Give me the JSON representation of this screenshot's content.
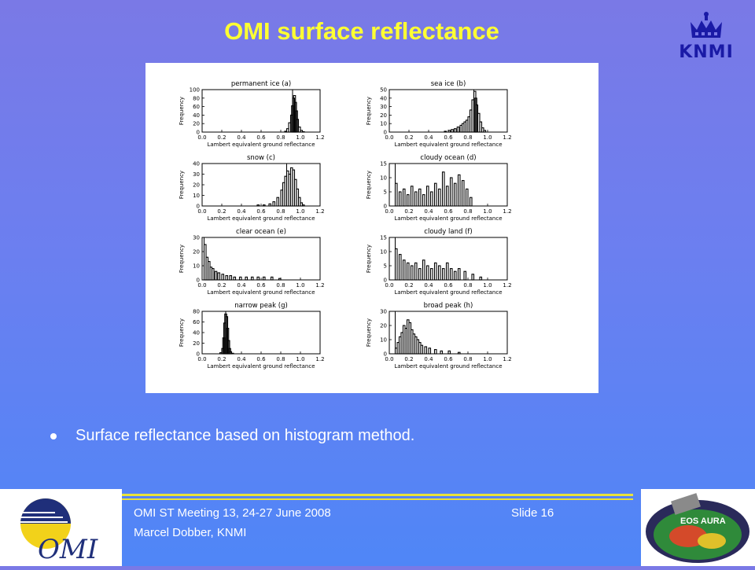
{
  "slide": {
    "title": "OMI surface reflectance",
    "bullet": "Surface reflectance based on histogram method.",
    "logo_text": "KNMI",
    "footer_meeting": "OMI ST Meeting 13, 24-27 June 2008",
    "footer_slide": "Slide 16",
    "footer_author": "Marcel Dobber, KNMI",
    "omi_logo_text": "OMI",
    "aura_logo_text": "EOS AURA",
    "icons": [
      "knmi-crown-icon",
      "omi-logo-icon",
      "eos-aura-logo-icon"
    ],
    "colors": {
      "title": "#ffff33",
      "background_top": "#7a79e6",
      "background_bottom": "#4f86f7",
      "footer_rule": "#e8e23a"
    }
  },
  "chart_data": [
    {
      "type": "histogram",
      "title": "permanent ice (a)",
      "xlabel": "Lambert equivalent ground reflectance",
      "ylabel": "Frequency",
      "xlim": [
        0.0,
        1.2
      ],
      "ylim": [
        0,
        100
      ],
      "xticks": [
        "0.0",
        "0.2",
        "0.4",
        "0.6",
        "0.8",
        "1.0",
        "1.2"
      ],
      "yticks": [
        "0",
        "20",
        "40",
        "60",
        "80",
        "100"
      ],
      "ytick_values": [
        0,
        20,
        40,
        60,
        80,
        100
      ],
      "marker_x": 0.92,
      "bins": [
        [
          0.84,
          2
        ],
        [
          0.86,
          8
        ],
        [
          0.88,
          22
        ],
        [
          0.9,
          40
        ],
        [
          0.91,
          62
        ],
        [
          0.92,
          80
        ],
        [
          0.93,
          86
        ],
        [
          0.94,
          70
        ],
        [
          0.95,
          50
        ],
        [
          0.96,
          30
        ],
        [
          0.98,
          12
        ],
        [
          1.0,
          4
        ],
        [
          1.02,
          1
        ]
      ]
    },
    {
      "type": "histogram",
      "title": "sea ice (b)",
      "xlabel": "Lambert equivalent ground reflectance",
      "ylabel": "Frequency",
      "xlim": [
        0.0,
        1.2
      ],
      "ylim": [
        0,
        50
      ],
      "xticks": [
        "0.0",
        "0.2",
        "0.4",
        "0.6",
        "0.8",
        "1.0",
        "1.2"
      ],
      "yticks": [
        "0",
        "10",
        "20",
        "30",
        "40",
        "50"
      ],
      "ytick_values": [
        0,
        10,
        20,
        30,
        40,
        50
      ],
      "marker_x": 0.86,
      "bins": [
        [
          0.56,
          1
        ],
        [
          0.6,
          2
        ],
        [
          0.63,
          3
        ],
        [
          0.66,
          4
        ],
        [
          0.69,
          6
        ],
        [
          0.72,
          8
        ],
        [
          0.74,
          10
        ],
        [
          0.76,
          12
        ],
        [
          0.78,
          14
        ],
        [
          0.8,
          18
        ],
        [
          0.82,
          26
        ],
        [
          0.84,
          38
        ],
        [
          0.86,
          48
        ],
        [
          0.87,
          40
        ],
        [
          0.88,
          32
        ],
        [
          0.9,
          22
        ],
        [
          0.92,
          12
        ],
        [
          0.94,
          5
        ],
        [
          0.96,
          2
        ]
      ]
    },
    {
      "type": "histogram",
      "title": "snow (c)",
      "xlabel": "Lambert equivalent ground reflectance",
      "ylabel": "Frequency",
      "xlim": [
        0.0,
        1.2
      ],
      "ylim": [
        0,
        40
      ],
      "xticks": [
        "0.0",
        "0.2",
        "0.4",
        "0.6",
        "0.8",
        "1.0",
        "1.2"
      ],
      "yticks": [
        "0",
        "10",
        "20",
        "30",
        "40"
      ],
      "ytick_values": [
        0,
        10,
        20,
        30,
        40
      ],
      "marker_x": 0.86,
      "bins": [
        [
          0.56,
          1
        ],
        [
          0.62,
          1
        ],
        [
          0.68,
          2
        ],
        [
          0.72,
          4
        ],
        [
          0.76,
          8
        ],
        [
          0.8,
          15
        ],
        [
          0.82,
          22
        ],
        [
          0.84,
          28
        ],
        [
          0.86,
          33
        ],
        [
          0.88,
          30
        ],
        [
          0.9,
          36
        ],
        [
          0.92,
          34
        ],
        [
          0.94,
          25
        ],
        [
          0.96,
          16
        ],
        [
          0.98,
          8
        ],
        [
          1.0,
          3
        ],
        [
          1.02,
          1
        ]
      ]
    },
    {
      "type": "histogram",
      "title": "cloudy ocean (d)",
      "xlabel": "Lambert equivalent ground reflectance",
      "ylabel": "Frequency",
      "xlim": [
        0.0,
        1.2
      ],
      "ylim": [
        0,
        15
      ],
      "xticks": [
        "0.0",
        "0.2",
        "0.4",
        "0.6",
        "0.8",
        "1.0",
        "1.2"
      ],
      "yticks": [
        "0",
        "5",
        "10",
        "15"
      ],
      "ytick_values": [
        0,
        5,
        10,
        15
      ],
      "marker_x": 0.06,
      "bins": [
        [
          0.06,
          8
        ],
        [
          0.1,
          5
        ],
        [
          0.14,
          6
        ],
        [
          0.18,
          4
        ],
        [
          0.22,
          7
        ],
        [
          0.26,
          5
        ],
        [
          0.3,
          6
        ],
        [
          0.34,
          4
        ],
        [
          0.38,
          7
        ],
        [
          0.42,
          5
        ],
        [
          0.46,
          8
        ],
        [
          0.5,
          6
        ],
        [
          0.54,
          12
        ],
        [
          0.58,
          7
        ],
        [
          0.62,
          10
        ],
        [
          0.66,
          8
        ],
        [
          0.7,
          11
        ],
        [
          0.74,
          9
        ],
        [
          0.78,
          6
        ],
        [
          0.82,
          3
        ]
      ]
    },
    {
      "type": "histogram",
      "title": "clear ocean (e)",
      "xlabel": "Lambert equivalent ground reflectance",
      "ylabel": "Frequency",
      "xlim": [
        0.0,
        1.2
      ],
      "ylim": [
        0,
        30
      ],
      "xticks": [
        "0.0",
        "0.2",
        "0.4",
        "0.6",
        "0.8",
        "1.0",
        "1.2"
      ],
      "yticks": [
        "0",
        "10",
        "20",
        "30"
      ],
      "ytick_values": [
        0,
        10,
        20,
        30
      ],
      "marker_x": 0.02,
      "bins": [
        [
          0.02,
          25
        ],
        [
          0.04,
          16
        ],
        [
          0.06,
          13
        ],
        [
          0.08,
          9
        ],
        [
          0.1,
          8
        ],
        [
          0.13,
          6
        ],
        [
          0.16,
          5
        ],
        [
          0.2,
          4
        ],
        [
          0.24,
          3
        ],
        [
          0.28,
          3
        ],
        [
          0.32,
          2
        ],
        [
          0.38,
          2
        ],
        [
          0.44,
          2
        ],
        [
          0.5,
          2
        ],
        [
          0.56,
          2
        ],
        [
          0.62,
          2
        ],
        [
          0.7,
          2
        ],
        [
          0.78,
          1
        ]
      ]
    },
    {
      "type": "histogram",
      "title": "cloudy land (f)",
      "xlabel": "Lambert equivalent ground reflectance",
      "ylabel": "Frequency",
      "xlim": [
        0.0,
        1.2
      ],
      "ylim": [
        0,
        15
      ],
      "xticks": [
        "0.0",
        "0.2",
        "0.4",
        "0.6",
        "0.8",
        "1.0",
        "1.2"
      ],
      "yticks": [
        "0",
        "5",
        "10",
        "15"
      ],
      "ytick_values": [
        0,
        5,
        10,
        15
      ],
      "marker_x": 0.06,
      "bins": [
        [
          0.06,
          11
        ],
        [
          0.1,
          9
        ],
        [
          0.14,
          7
        ],
        [
          0.18,
          6
        ],
        [
          0.22,
          5
        ],
        [
          0.26,
          6
        ],
        [
          0.3,
          4
        ],
        [
          0.34,
          7
        ],
        [
          0.38,
          5
        ],
        [
          0.42,
          4
        ],
        [
          0.46,
          6
        ],
        [
          0.5,
          5
        ],
        [
          0.54,
          4
        ],
        [
          0.58,
          6
        ],
        [
          0.62,
          4
        ],
        [
          0.66,
          3
        ],
        [
          0.7,
          4
        ],
        [
          0.76,
          3
        ],
        [
          0.84,
          2
        ],
        [
          0.92,
          1
        ]
      ]
    },
    {
      "type": "histogram",
      "title": "narrow peak (g)",
      "xlabel": "Lambert equivalent ground reflectance",
      "ylabel": "Frequency",
      "xlim": [
        0.0,
        1.2
      ],
      "ylim": [
        0,
        80
      ],
      "xticks": [
        "0.0",
        "0.2",
        "0.4",
        "0.6",
        "0.8",
        "1.0",
        "1.2"
      ],
      "yticks": [
        "0",
        "20",
        "40",
        "60",
        "80"
      ],
      "ytick_values": [
        0,
        20,
        40,
        60,
        80
      ],
      "marker_x": 0.24,
      "bins": [
        [
          0.18,
          2
        ],
        [
          0.2,
          10
        ],
        [
          0.21,
          30
        ],
        [
          0.22,
          58
        ],
        [
          0.23,
          75
        ],
        [
          0.24,
          70
        ],
        [
          0.25,
          48
        ],
        [
          0.26,
          25
        ],
        [
          0.27,
          10
        ],
        [
          0.28,
          4
        ],
        [
          0.3,
          1
        ]
      ]
    },
    {
      "type": "histogram",
      "title": "broad peak (h)",
      "xlabel": "Lambert equivalent ground reflectance",
      "ylabel": "Frequency",
      "xlim": [
        0.0,
        1.2
      ],
      "ylim": [
        0,
        30
      ],
      "xticks": [
        "0.0",
        "0.2",
        "0.4",
        "0.6",
        "0.8",
        "1.0",
        "1.2"
      ],
      "yticks": [
        "0",
        "10",
        "20",
        "30"
      ],
      "ytick_values": [
        0,
        10,
        20,
        30
      ],
      "marker_x": 0.06,
      "bins": [
        [
          0.06,
          4
        ],
        [
          0.08,
          8
        ],
        [
          0.1,
          12
        ],
        [
          0.12,
          15
        ],
        [
          0.14,
          20
        ],
        [
          0.16,
          18
        ],
        [
          0.18,
          24
        ],
        [
          0.2,
          22
        ],
        [
          0.22,
          17
        ],
        [
          0.24,
          14
        ],
        [
          0.26,
          12
        ],
        [
          0.28,
          10
        ],
        [
          0.3,
          8
        ],
        [
          0.32,
          6
        ],
        [
          0.36,
          5
        ],
        [
          0.4,
          4
        ],
        [
          0.46,
          3
        ],
        [
          0.52,
          2
        ],
        [
          0.6,
          2
        ],
        [
          0.7,
          1
        ]
      ]
    }
  ]
}
